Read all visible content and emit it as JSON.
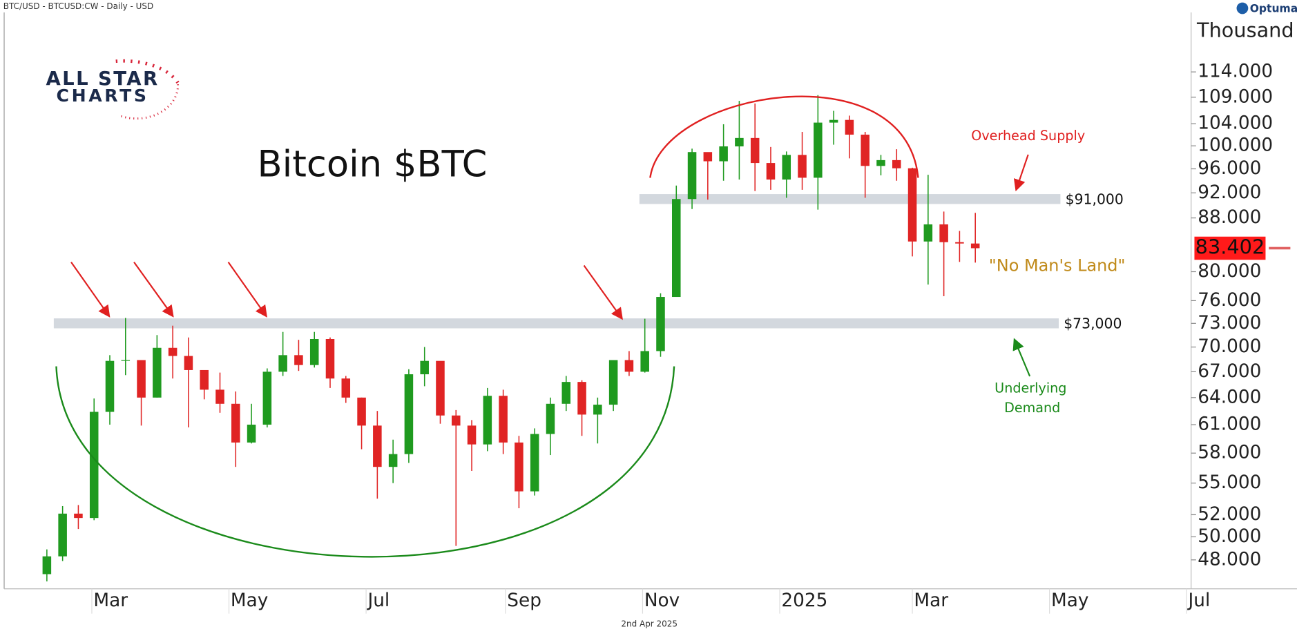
{
  "header": "BTC/USD - BTCUSD:CW - Daily - USD",
  "footer": "2nd Apr 2025",
  "brand": "Optuma",
  "logo": {
    "line1": "ALL STAR",
    "line2": "CHARTS"
  },
  "chart_data": {
    "type": "candlestick",
    "title": "Bitcoin $BTC",
    "y_unit": "Thousand",
    "ylog": true,
    "up_color": "#1f9a1f",
    "down_color": "#e02424",
    "xlim": [
      21,
      549
    ],
    "xticks": [
      {
        "value": 60,
        "label": "Mar"
      },
      {
        "value": 121,
        "label": "May"
      },
      {
        "value": 182,
        "label": "Jul"
      },
      {
        "value": 244,
        "label": "Sep"
      },
      {
        "value": 305,
        "label": "Nov"
      },
      {
        "value": 366,
        "label": "2025"
      },
      {
        "value": 425,
        "label": "Mar"
      },
      {
        "value": 486,
        "label": "May"
      },
      {
        "value": 547,
        "label": "Jul"
      }
    ],
    "ylim": [
      45.6,
      129.5
    ],
    "yticks": [
      {
        "value": 48,
        "label": "48.000"
      },
      {
        "value": 50,
        "label": "50.000"
      },
      {
        "value": 52,
        "label": "52.000"
      },
      {
        "value": 55,
        "label": "55.000"
      },
      {
        "value": 58,
        "label": "58.000"
      },
      {
        "value": 61,
        "label": "61.000"
      },
      {
        "value": 64,
        "label": "64.000"
      },
      {
        "value": 67,
        "label": "67.000"
      },
      {
        "value": 70,
        "label": "70.000"
      },
      {
        "value": 73,
        "label": "73.000"
      },
      {
        "value": 76,
        "label": "76.000"
      },
      {
        "value": 80,
        "label": "80.000"
      },
      {
        "value": 88,
        "label": "88.000"
      },
      {
        "value": 92,
        "label": "92.000"
      },
      {
        "value": 96,
        "label": "96.000"
      },
      {
        "value": 100,
        "label": "100.000"
      },
      {
        "value": 104,
        "label": "104.000"
      },
      {
        "value": 109,
        "label": "109.000"
      },
      {
        "value": 114,
        "label": "114.000"
      }
    ],
    "x": [
      40,
      47,
      54,
      61,
      68,
      75,
      82,
      89,
      96,
      103,
      110,
      117,
      124,
      131,
      138,
      145,
      152,
      159,
      166,
      173,
      180,
      187,
      194,
      201,
      208,
      215,
      222,
      229,
      236,
      243,
      250,
      257,
      264,
      271,
      278,
      285,
      292,
      299,
      306,
      313,
      320,
      327,
      334,
      341,
      348,
      355,
      362,
      369,
      376,
      383,
      390,
      397,
      404,
      411,
      418,
      425,
      432,
      439,
      446,
      453
    ],
    "open": [
      46.8,
      48.3,
      52.1,
      51.7,
      62.4,
      68.3,
      68.4,
      64.0,
      69.9,
      68.9,
      67.2,
      64.9,
      63.3,
      59.1,
      61.0,
      67.0,
      69.0,
      67.8,
      71.0,
      66.2,
      64.0,
      60.9,
      56.6,
      57.9,
      66.7,
      68.3,
      62.0,
      60.9,
      58.9,
      64.2,
      59.1,
      54.2,
      60.0,
      63.3,
      65.8,
      62.1,
      63.2,
      68.4,
      67.0,
      69.5,
      76.5,
      91.0,
      98.9,
      97.3,
      99.9,
      101.4,
      97.0,
      94.2,
      98.4,
      94.5,
      104.2,
      104.7,
      102.0,
      96.5,
      97.5,
      96.1,
      84.4,
      87.0,
      84.3,
      84.1
    ],
    "high": [
      48.9,
      52.8,
      52.9,
      63.9,
      69.0,
      73.7,
      68.1,
      71.5,
      72.7,
      71.2,
      67.0,
      66.9,
      64.7,
      63.3,
      67.4,
      71.9,
      70.9,
      71.9,
      71.2,
      66.5,
      64.0,
      62.5,
      59.4,
      67.3,
      70.0,
      68.1,
      62.6,
      61.5,
      65.1,
      64.9,
      59.8,
      60.6,
      64.0,
      66.5,
      66.0,
      64.0,
      68.4,
      69.5,
      73.6,
      77.0,
      93.2,
      99.5,
      98.8,
      103.9,
      108.3,
      107.8,
      99.8,
      99.0,
      102.5,
      109.4,
      106.4,
      105.5,
      102.5,
      98.4,
      99.4,
      96.2,
      95.0,
      89.0,
      86.0,
      88.8
    ],
    "low": [
      46.2,
      47.9,
      50.7,
      51.5,
      61.0,
      66.6,
      60.9,
      64.0,
      66.2,
      60.7,
      63.8,
      62.3,
      56.6,
      59.0,
      60.7,
      66.5,
      67.1,
      67.5,
      65.1,
      63.4,
      58.4,
      53.5,
      55.0,
      57.0,
      65.3,
      61.1,
      49.2,
      56.2,
      58.2,
      57.9,
      52.6,
      53.8,
      57.8,
      62.5,
      59.8,
      59.0,
      62.5,
      66.5,
      66.9,
      68.8,
      76.5,
      89.4,
      90.9,
      94.0,
      94.2,
      92.3,
      92.5,
      91.2,
      92.5,
      89.3,
      100.2,
      97.8,
      91.2,
      94.9,
      94.0,
      82.2,
      78.2,
      76.6,
      81.4,
      81.3
    ],
    "close": [
      48.3,
      52.1,
      51.7,
      62.4,
      68.3,
      68.4,
      64.0,
      69.9,
      68.9,
      67.2,
      64.9,
      63.3,
      59.1,
      61.0,
      67.0,
      69.0,
      67.8,
      71.0,
      66.2,
      64.0,
      60.9,
      56.6,
      57.9,
      66.7,
      68.3,
      62.0,
      60.9,
      58.9,
      64.2,
      59.1,
      54.2,
      60.0,
      63.3,
      65.8,
      62.1,
      63.2,
      68.4,
      67.0,
      69.5,
      76.5,
      91.0,
      98.9,
      97.3,
      99.9,
      101.4,
      97.0,
      94.2,
      98.4,
      94.5,
      104.2,
      104.7,
      102.0,
      96.5,
      97.5,
      96.1,
      84.4,
      87.0,
      84.3,
      84.1,
      83.402
    ],
    "last_price": 83.402,
    "levels": [
      {
        "value": 91,
        "label": "$91,000"
      },
      {
        "value": 73,
        "label": "$73,000"
      }
    ],
    "annotations": {
      "overhead": "Overhead Supply",
      "no_mans_land": "\"No Man's Land\"",
      "demand1": "Underlying",
      "demand2": "Demand"
    }
  }
}
